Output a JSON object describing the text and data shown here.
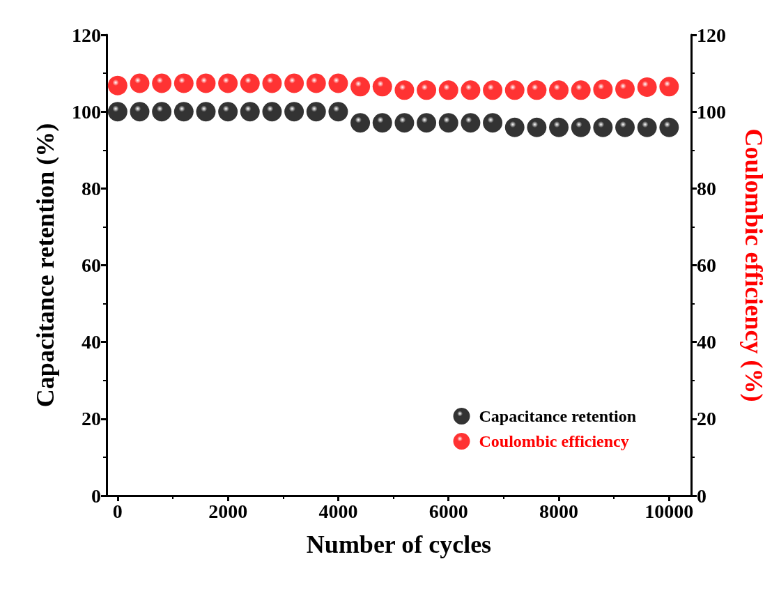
{
  "chart_data": {
    "type": "scatter",
    "xlabel": "Number of cycles",
    "ylabel": "Capacitance retention (%)",
    "y2label": "Coulombic efficiency (%)",
    "x": [
      0,
      400,
      800,
      1200,
      1600,
      2000,
      2400,
      2800,
      3200,
      3600,
      4000,
      4400,
      4800,
      5200,
      5600,
      6000,
      6400,
      6800,
      7200,
      7600,
      8000,
      8400,
      8800,
      9200,
      9600,
      10000
    ],
    "series": [
      {
        "name": "Capacitance retention",
        "color": "#000000",
        "values": [
          100,
          100,
          100,
          100,
          100,
          100,
          100,
          100,
          100,
          100,
          100,
          97.1,
          97.1,
          97.1,
          97.1,
          97.1,
          97.1,
          97.1,
          95.9,
          95.9,
          95.9,
          95.9,
          95.9,
          95.9,
          95.9,
          95.9
        ]
      },
      {
        "name": "Coulombic efficiency",
        "color": "#ff0000",
        "axis": "y2",
        "values": [
          106.8,
          107.4,
          107.4,
          107.4,
          107.4,
          107.4,
          107.4,
          107.4,
          107.4,
          107.4,
          107.4,
          106.5,
          106.5,
          105.6,
          105.6,
          105.6,
          105.6,
          105.6,
          105.6,
          105.6,
          105.6,
          105.6,
          105.8,
          105.9,
          106.4,
          106.5
        ]
      }
    ],
    "xlim": [
      -200,
      10400
    ],
    "xticks": [
      0,
      2000,
      4000,
      6000,
      8000,
      10000
    ],
    "ylim": [
      0,
      120
    ],
    "yticks": [
      0,
      20,
      40,
      60,
      80,
      100,
      120
    ],
    "y2lim": [
      0,
      120
    ],
    "y2ticks": [
      0,
      20,
      40,
      60,
      80,
      100,
      120
    ],
    "marker": "circle",
    "legend": "bottom right",
    "grid": false
  }
}
